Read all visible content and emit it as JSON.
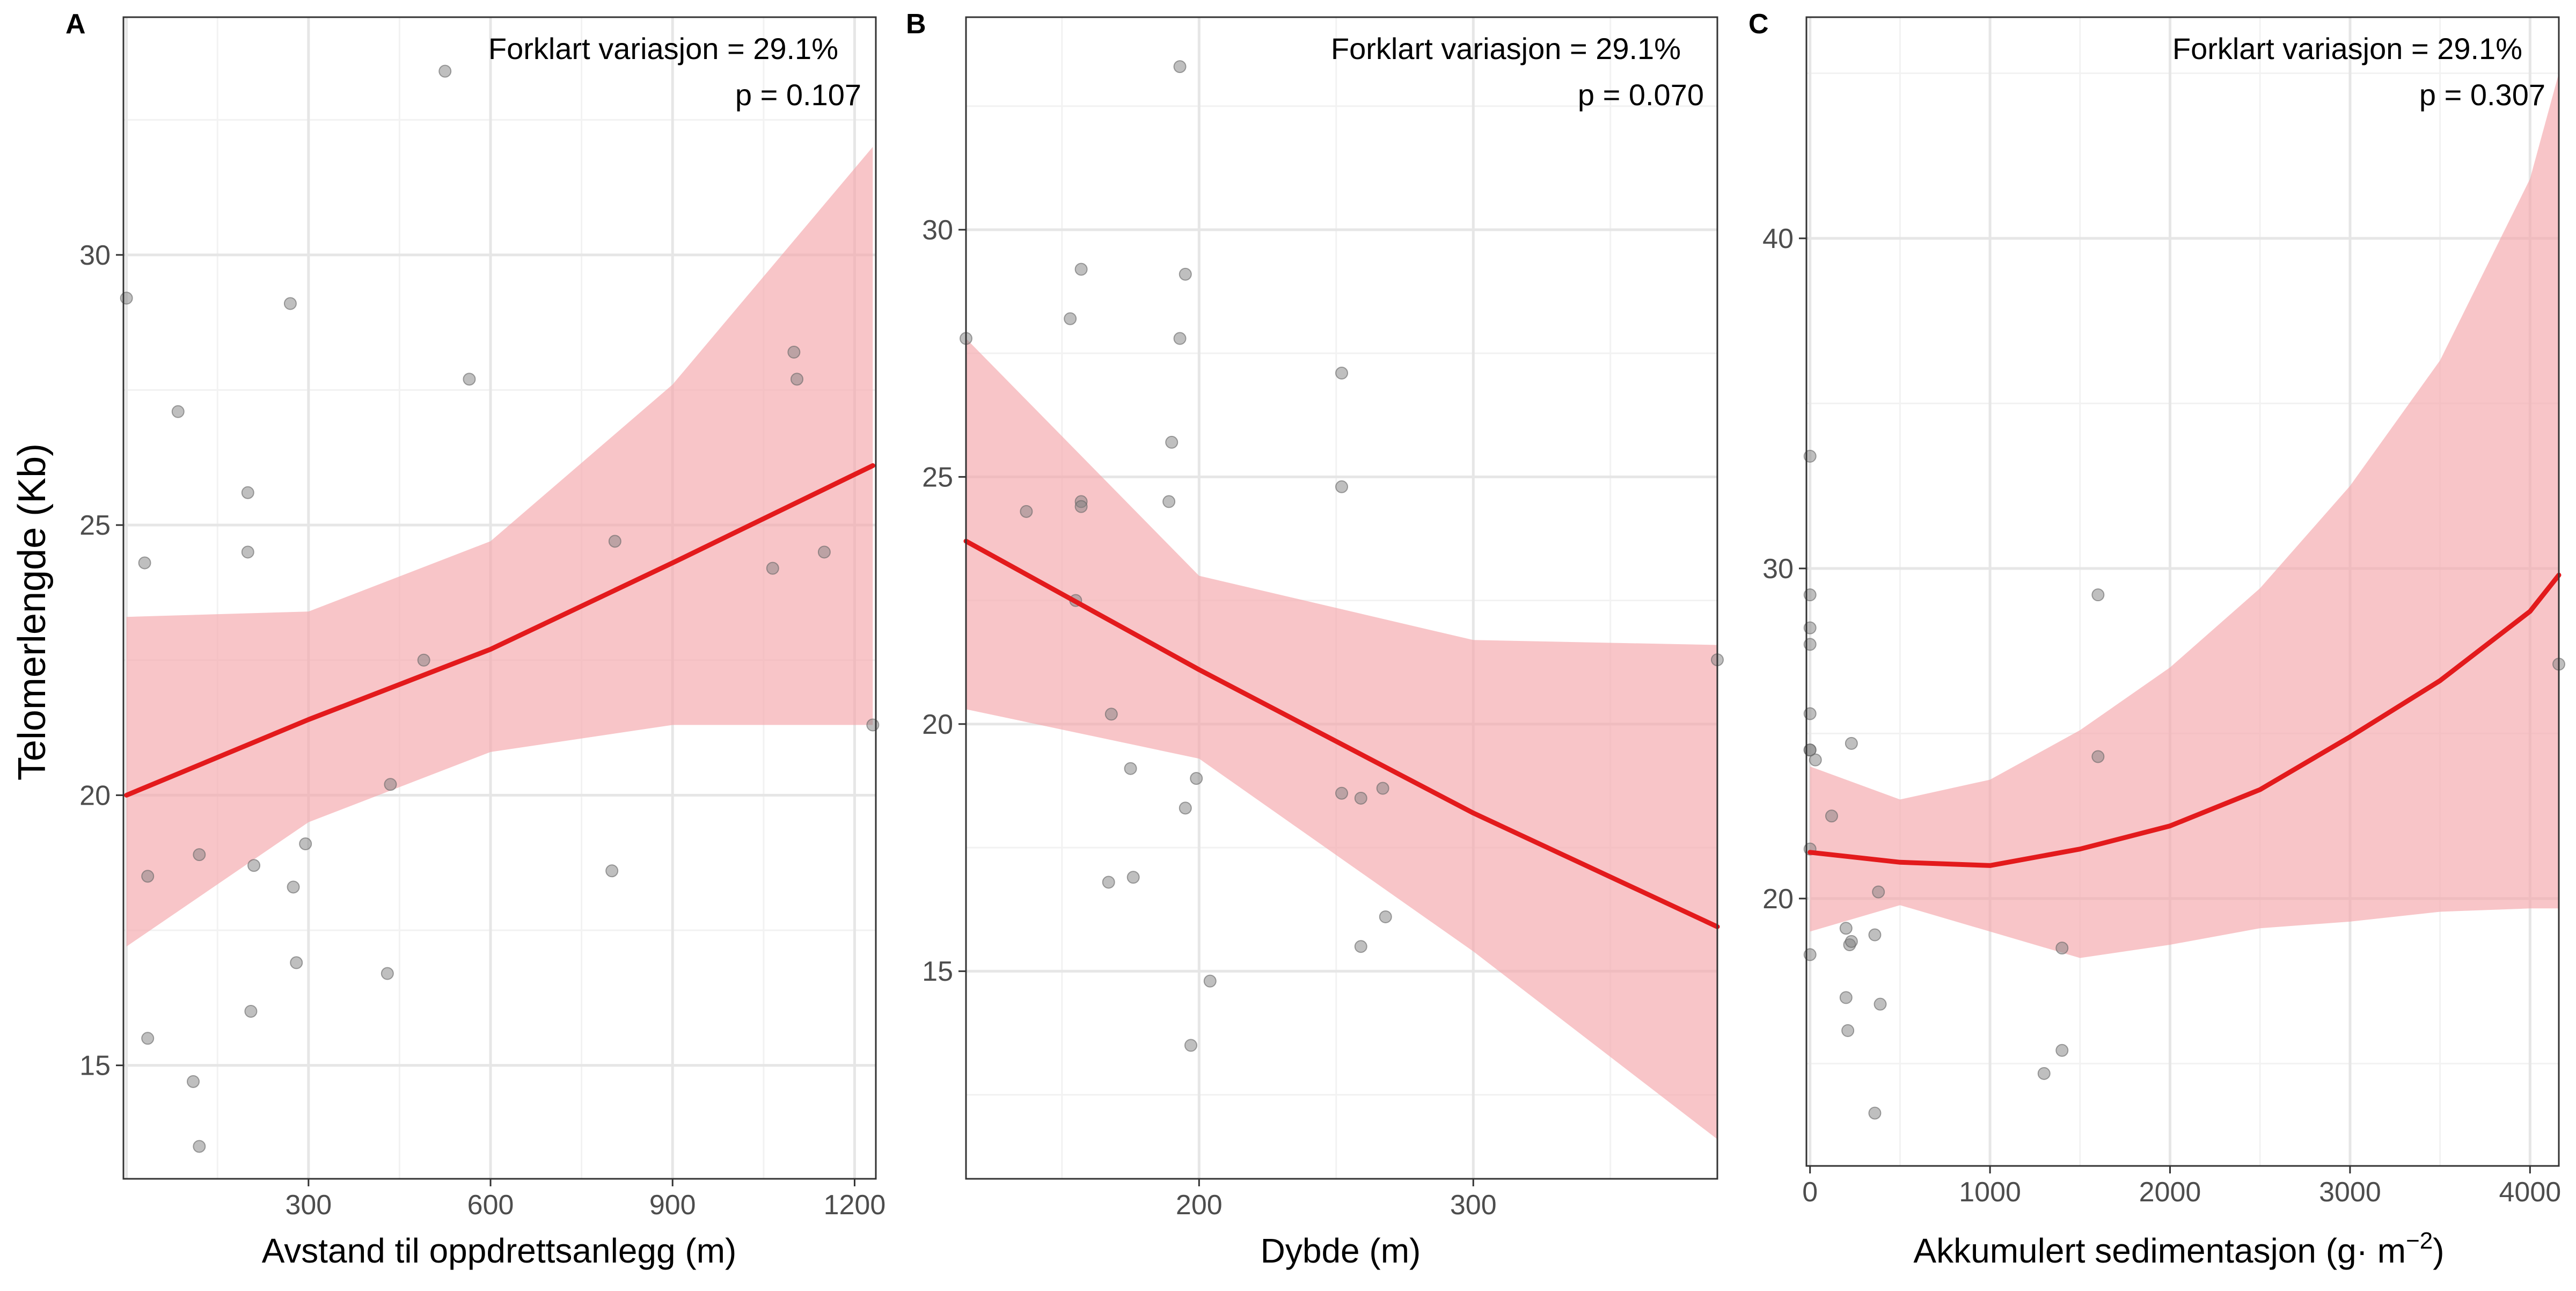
{
  "colors": {
    "fit_line": "#e31a1c",
    "ci_band": "#f4a6aa",
    "points": "#808080",
    "grid_major": "#e6e6e6",
    "grid_minor": "#f2f2f2",
    "panel_border": "#333333"
  },
  "ylabel": "Telomerlengde (Kb)",
  "chart_data": [
    {
      "type": "scatter",
      "panel": "A",
      "annotation_r2": "Forklart variasjon = 29.1%",
      "annotation_p": "p = 0.107",
      "xlabel": "Avstand til oppdrettsanlegg (m)",
      "xlabel_sup": "",
      "xlabel_suffix": "",
      "ylabel": "Telomerlengde (Kb)",
      "xlim": [
        -5,
        1235
      ],
      "ylim": [
        12.9,
        34.4
      ],
      "xticks": [
        300,
        600,
        900,
        1200
      ],
      "yticks": [
        15,
        20,
        25,
        30
      ],
      "points": [
        [
          0,
          29.2
        ],
        [
          30,
          24.3
        ],
        [
          35,
          18.5
        ],
        [
          35,
          15.5
        ],
        [
          85,
          27.1
        ],
        [
          110,
          14.7
        ],
        [
          120,
          13.5
        ],
        [
          120,
          18.9
        ],
        [
          200,
          25.6
        ],
        [
          200,
          24.5
        ],
        [
          205,
          16.0
        ],
        [
          210,
          18.7
        ],
        [
          270,
          29.1
        ],
        [
          275,
          18.3
        ],
        [
          280,
          16.9
        ],
        [
          295,
          19.1
        ],
        [
          430,
          16.7
        ],
        [
          435,
          20.2
        ],
        [
          490,
          22.5
        ],
        [
          525,
          33.4
        ],
        [
          565,
          27.7
        ],
        [
          800,
          18.6
        ],
        [
          805,
          24.7
        ],
        [
          1065,
          24.2
        ],
        [
          1100,
          28.2
        ],
        [
          1105,
          27.7
        ],
        [
          1150,
          24.5
        ],
        [
          1230,
          21.3
        ]
      ],
      "fit": {
        "x": [
          0,
          300,
          600,
          900,
          1230
        ],
        "y": [
          20.0,
          21.4,
          22.7,
          24.3,
          26.1
        ],
        "lower": [
          17.2,
          19.5,
          20.8,
          21.3,
          21.3
        ],
        "upper": [
          23.3,
          23.4,
          24.7,
          27.6,
          32.0
        ]
      }
    },
    {
      "type": "scatter",
      "panel": "B",
      "annotation_r2": "Forklart variasjon = 29.1%",
      "annotation_p": "p = 0.070",
      "xlabel": "Dybde (m)",
      "xlabel_sup": "",
      "xlabel_suffix": "",
      "ylabel": "Telomerlengde (Kb)",
      "xlim": [
        115,
        389
      ],
      "ylim": [
        10.8,
        34.3
      ],
      "xticks": [
        200,
        300
      ],
      "yticks": [
        15,
        20,
        25,
        30
      ],
      "points": [
        [
          115,
          27.8
        ],
        [
          137,
          24.3
        ],
        [
          155,
          22.5
        ],
        [
          153,
          28.2
        ],
        [
          157,
          29.2
        ],
        [
          157,
          24.5
        ],
        [
          157,
          24.4
        ],
        [
          168,
          20.2
        ],
        [
          167,
          16.8
        ],
        [
          175,
          19.1
        ],
        [
          176,
          16.9
        ],
        [
          190,
          25.7
        ],
        [
          189,
          24.5
        ],
        [
          193,
          27.8
        ],
        [
          193,
          33.3
        ],
        [
          195,
          29.1
        ],
        [
          195,
          18.3
        ],
        [
          197,
          13.5
        ],
        [
          199,
          18.9
        ],
        [
          204,
          14.8
        ],
        [
          252,
          27.1
        ],
        [
          252,
          24.8
        ],
        [
          252,
          18.6
        ],
        [
          259,
          15.5
        ],
        [
          259,
          18.5
        ],
        [
          267,
          18.7
        ],
        [
          268,
          16.1
        ],
        [
          389,
          21.3
        ]
      ],
      "fit": {
        "x": [
          115,
          200,
          300,
          389
        ],
        "y": [
          23.7,
          21.1,
          18.2,
          15.9
        ],
        "lower": [
          20.3,
          19.3,
          15.4,
          11.6
        ],
        "upper": [
          27.8,
          23.0,
          21.7,
          21.6
        ]
      }
    },
    {
      "type": "scatter",
      "panel": "C",
      "annotation_r2": "Forklart variasjon = 29.1%",
      "annotation_p": "p = 0.307",
      "xlabel": "Akkumulert sedimentasjon (g· m",
      "xlabel_sup": "−2",
      "xlabel_suffix": ")",
      "ylabel": "Telomerlengde (Kb)",
      "xlim": [
        -20,
        4160
      ],
      "ylim": [
        11.9,
        46.7
      ],
      "xticks": [
        0,
        1000,
        2000,
        3000,
        4000
      ],
      "yticks": [
        20,
        30,
        40
      ],
      "points": [
        [
          0,
          33.4
        ],
        [
          0,
          29.2
        ],
        [
          0,
          28.2
        ],
        [
          0,
          27.7
        ],
        [
          0,
          25.6
        ],
        [
          0,
          24.5
        ],
        [
          0,
          24.5
        ],
        [
          30,
          24.2
        ],
        [
          0,
          21.5
        ],
        [
          0,
          18.3
        ],
        [
          120,
          22.5
        ],
        [
          200,
          19.1
        ],
        [
          200,
          17.0
        ],
        [
          210,
          16.0
        ],
        [
          220,
          18.6
        ],
        [
          230,
          18.7
        ],
        [
          230,
          24.7
        ],
        [
          360,
          18.9
        ],
        [
          380,
          20.2
        ],
        [
          390,
          16.8
        ],
        [
          360,
          13.5
        ],
        [
          1300,
          14.7
        ],
        [
          1400,
          18.5
        ],
        [
          1400,
          15.4
        ],
        [
          1600,
          29.2
        ],
        [
          1600,
          24.3
        ],
        [
          4160,
          27.1
        ]
      ],
      "fit": {
        "x": [
          0,
          500,
          1000,
          1500,
          2000,
          2500,
          3000,
          3500,
          4000,
          4160
        ],
        "y": [
          21.4,
          21.1,
          21.0,
          21.5,
          22.2,
          23.3,
          24.9,
          26.6,
          28.7,
          29.8
        ],
        "lower": [
          19.0,
          19.8,
          19.0,
          18.2,
          18.6,
          19.1,
          19.3,
          19.6,
          19.7,
          19.7
        ],
        "upper": [
          24.0,
          23.0,
          23.6,
          25.1,
          27.0,
          29.4,
          32.5,
          36.3,
          41.8,
          45.0
        ]
      }
    }
  ]
}
